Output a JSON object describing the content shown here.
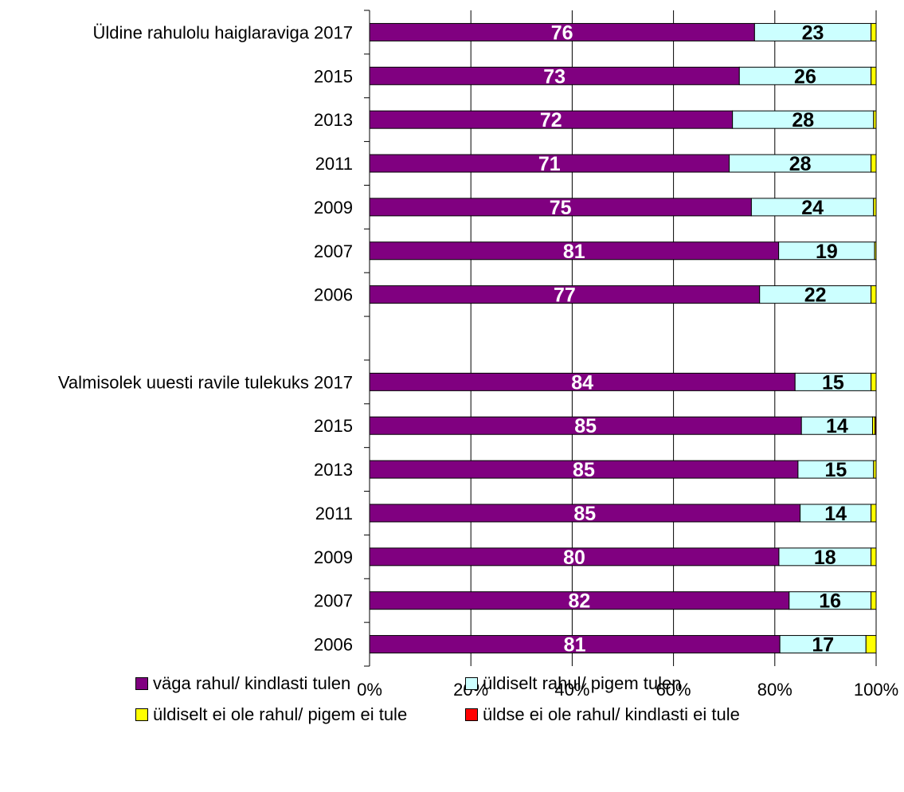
{
  "chart_data": {
    "type": "bar",
    "orientation": "horizontal",
    "stacked": "percent",
    "groups": [
      {
        "label": "Üldine rahulolu haiglaraviga",
        "rows": [
          {
            "year": "2017",
            "values": [
              76,
              23,
              1,
              0
            ]
          },
          {
            "year": "2015",
            "values": [
              73,
              26,
              1,
              0
            ]
          },
          {
            "year": "2013",
            "values": [
              72,
              28,
              0.5,
              0
            ]
          },
          {
            "year": "2011",
            "values": [
              71,
              28,
              1,
              0
            ]
          },
          {
            "year": "2009",
            "values": [
              75,
              24,
              0.5,
              0
            ]
          },
          {
            "year": "2007",
            "values": [
              81,
              19,
              0.3,
              0
            ]
          },
          {
            "year": "2006",
            "values": [
              77,
              22,
              1,
              0
            ]
          }
        ]
      },
      {
        "label": "Valmisolek uuesti ravile tulekuks",
        "rows": [
          {
            "year": "2017",
            "values": [
              84,
              15,
              1,
              0
            ]
          },
          {
            "year": "2015",
            "values": [
              85,
              14,
              0.5,
              0.2
            ]
          },
          {
            "year": "2013",
            "values": [
              85,
              15,
              0.5,
              0
            ]
          },
          {
            "year": "2011",
            "values": [
              85,
              14,
              1,
              0
            ]
          },
          {
            "year": "2009",
            "values": [
              80,
              18,
              1,
              0
            ]
          },
          {
            "year": "2007",
            "values": [
              82,
              16,
              1,
              0
            ]
          },
          {
            "year": "2006",
            "values": [
              81,
              17,
              2,
              0
            ]
          }
        ]
      }
    ],
    "series": [
      {
        "name": "väga rahul/ kindlasti tulen",
        "color": "#800080",
        "label_color": "#ffffff",
        "show_labels": true
      },
      {
        "name": "üldiselt rahul/ pigem tulen",
        "color": "#ccffff",
        "label_color": "#000000",
        "show_labels": true
      },
      {
        "name": "üldiselt ei ole rahul/ pigem ei tule",
        "color": "#ffff00",
        "label_color": "#000000",
        "show_labels": false
      },
      {
        "name": "üldse ei ole rahul/ kindlasti ei tule",
        "color": "#ff0000",
        "label_color": "#000000",
        "show_labels": false
      }
    ],
    "x_ticks": [
      "0%",
      "20%",
      "40%",
      "60%",
      "80%",
      "100%"
    ],
    "xlim": [
      0,
      100
    ],
    "grid": "vertical",
    "legend_position": "bottom"
  }
}
